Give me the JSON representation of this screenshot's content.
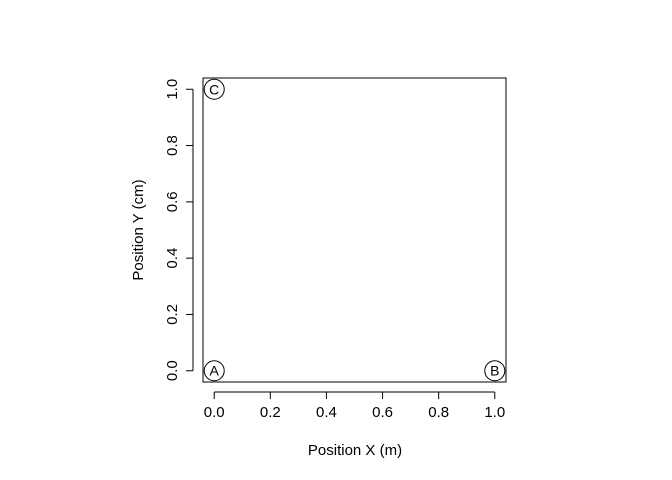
{
  "chart_data": {
    "type": "scatter",
    "title": "",
    "xlabel": "Position X (m)",
    "ylabel": "Position Y (cm)",
    "xlim": [
      -0.04,
      1.04
    ],
    "ylim": [
      -0.04,
      1.04
    ],
    "x_ticks": [
      "0.0",
      "0.2",
      "0.4",
      "0.6",
      "0.8",
      "1.0"
    ],
    "y_ticks": [
      "0.0",
      "0.2",
      "0.4",
      "0.6",
      "0.8",
      "1.0"
    ],
    "grid": false,
    "points": [
      {
        "label": "A",
        "x": 0.0,
        "y": 0.0
      },
      {
        "label": "B",
        "x": 1.0,
        "y": 0.0
      },
      {
        "label": "C",
        "x": 0.0,
        "y": 1.0
      }
    ],
    "marker": "open-circle",
    "colors": {
      "axis": "#000000",
      "background": "#ffffff"
    }
  }
}
